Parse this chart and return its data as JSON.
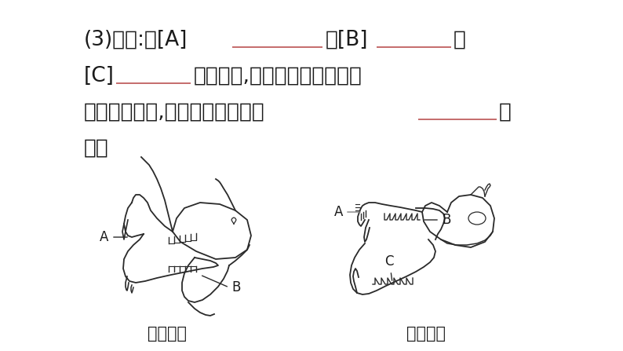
{
  "bg_color": "#ffffff",
  "text_color": "#1a1a1a",
  "underline_color": "#c06060",
  "line1_parts": [
    "(3)牙齿:有[A]",
    "___________",
    "、[B]",
    "_________",
    "和"
  ],
  "line2_parts": [
    "[C]",
    "________",
    "等的分化,既提高了哺乳动物摄"
  ],
  "line3_parts": [
    "取食物的能力,也增强了对食物的",
    "________",
    "能"
  ],
  "line4_parts": [
    "力。"
  ],
  "label_rabbit": "兔的牙齿",
  "label_wolf": "狼的牙齿",
  "figsize": [
    7.94,
    4.47
  ],
  "dpi": 100
}
